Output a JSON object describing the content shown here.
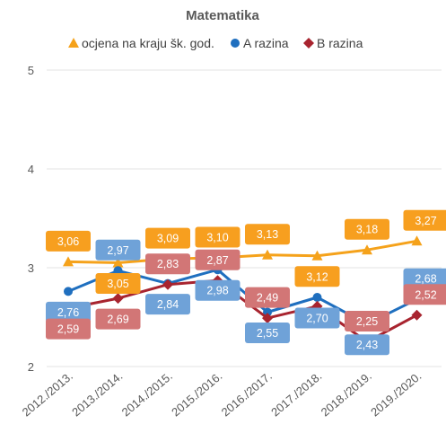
{
  "chart_data": {
    "type": "line",
    "title": "Matematika",
    "categories": [
      "2012./2013.",
      "2013./2014.",
      "2014./2015.",
      "2015./2016.",
      "2016./2017.",
      "2017./2018.",
      "2018./2019.",
      "2019./2020."
    ],
    "ylim": [
      2,
      5
    ],
    "yticks": [
      "2",
      "3",
      "4",
      "5"
    ],
    "grid": true,
    "legend_position": "top",
    "series": [
      {
        "name": "ocjena na kraju šk. god.",
        "marker": "triangle",
        "color": "#F5A21B",
        "label_color": "#F79F1F",
        "values": [
          3.06,
          3.05,
          3.09,
          3.1,
          3.13,
          3.12,
          3.18,
          3.27
        ],
        "labels": [
          "3,06",
          "3,05",
          "3,09",
          "3,10",
          "3,13",
          "3,12",
          "3,18",
          "3,27"
        ]
      },
      {
        "name": "A razina",
        "marker": "circle",
        "color": "#1F6FBF",
        "label_color": "#6FA2D8",
        "values": [
          2.76,
          2.97,
          2.84,
          2.98,
          2.55,
          2.7,
          2.43,
          2.68
        ],
        "labels": [
          "2,76",
          "2,97",
          "2,84",
          "2,98",
          "2,55",
          "2,70",
          "2,43",
          "2,68"
        ]
      },
      {
        "name": "B razina",
        "marker": "diamond",
        "color": "#A8242F",
        "label_color": "#D27676",
        "values": [
          2.59,
          2.69,
          2.83,
          2.87,
          2.49,
          2.61,
          2.25,
          2.52
        ],
        "labels": [
          "2,59",
          "2,69",
          "2,83",
          "2,87",
          "2,49",
          "",
          "2,25",
          "2,52"
        ]
      }
    ]
  }
}
